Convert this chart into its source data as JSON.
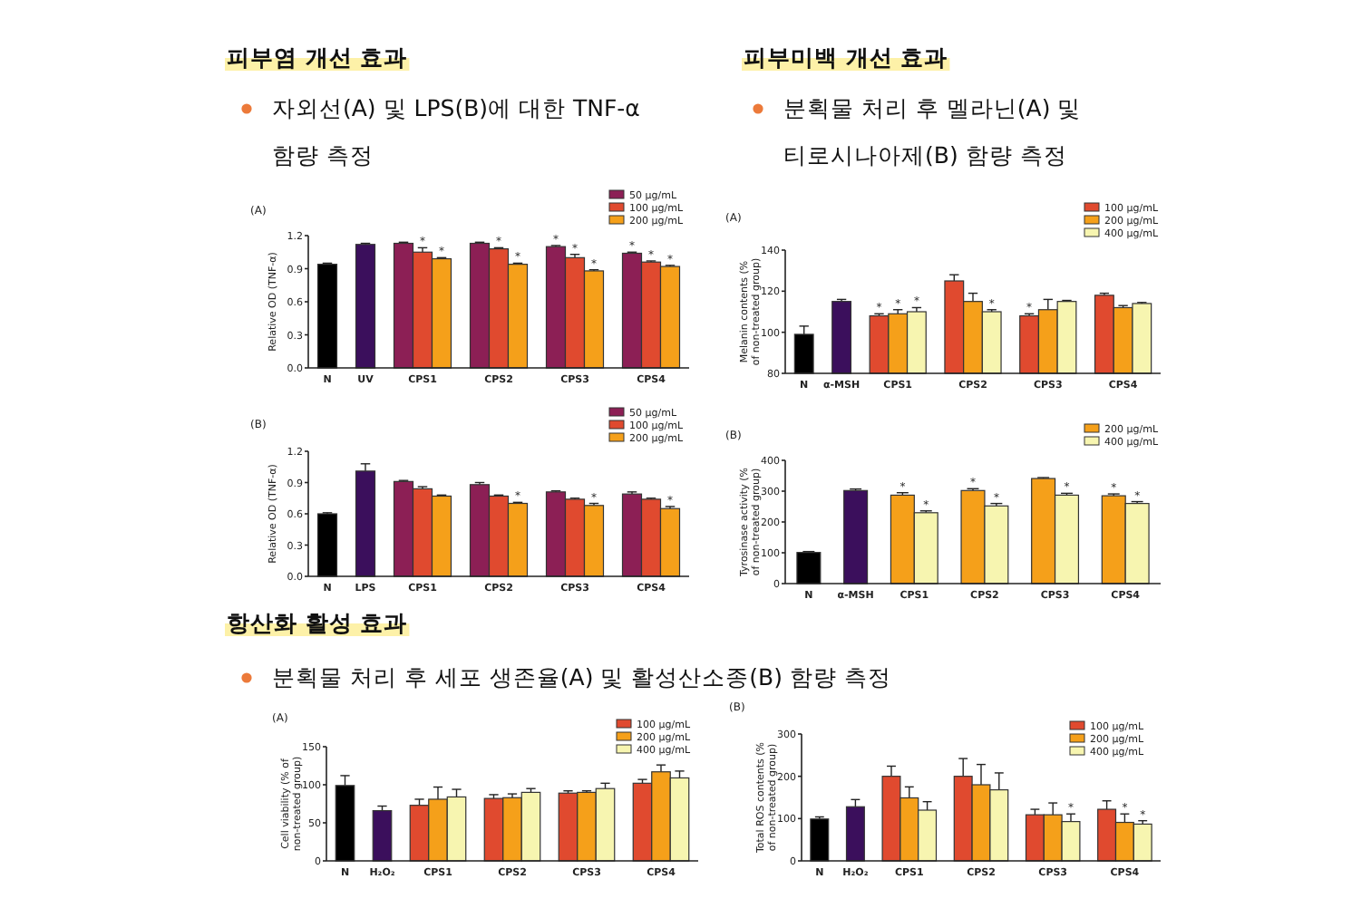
{
  "chart_data": [
    {
      "type": "bar",
      "title": "피부염 개선 효과",
      "subtitle": "자외선(A) 및 LPS(B)에 대한 TNF-α 함량 측정",
      "ylabel": "Relative OD (TNF-α)",
      "annotations": [
        "(A)"
      ],
      "categories": [
        "N",
        "UV",
        "CPS1",
        "CPS2",
        "CPS3",
        "CPS4"
      ],
      "ylim": [
        0,
        1.2
      ],
      "yticks": [
        {
          "value": 0,
          "label": "0.0"
        },
        0.3,
        0.6,
        0.9,
        1.2
      ],
      "legend": "top right",
      "series": [
        {
          "color": "#000000",
          "values": [
            0.94,
            null,
            null,
            null,
            null,
            null
          ],
          "errors": [
            0.01,
            null,
            null,
            null,
            null,
            null
          ]
        },
        {
          "color": "#3b0f5c",
          "values": [
            null,
            1.12,
            null,
            null,
            null,
            null
          ],
          "errors": [
            null,
            0.01,
            null,
            null,
            null,
            null
          ]
        },
        {
          "name": "50 μg/mL",
          "color": "#8c1f55",
          "values": [
            null,
            null,
            1.13,
            1.13,
            1.1,
            1.04
          ],
          "errors": [
            null,
            null,
            0.01,
            0.01,
            0.01,
            0.01
          ],
          "value_labels": [
            null,
            null,
            null,
            null,
            "*",
            "*"
          ]
        },
        {
          "name": "100 μg/mL",
          "color": "#e04a2f",
          "values": [
            null,
            null,
            1.05,
            1.08,
            1.0,
            0.96
          ],
          "errors": [
            null,
            null,
            0.04,
            0.01,
            0.03,
            0.01
          ],
          "value_labels": [
            null,
            null,
            "*",
            "*",
            "*",
            "*"
          ]
        },
        {
          "name": "200 μg/mL",
          "color": "#f5a01a",
          "values": [
            null,
            null,
            0.99,
            0.94,
            0.88,
            0.92
          ],
          "errors": [
            null,
            null,
            0.01,
            0.01,
            0.01,
            0.01
          ],
          "value_labels": [
            null,
            null,
            "*",
            "*",
            "*",
            "*"
          ]
        }
      ]
    },
    {
      "type": "bar",
      "ylabel": "Relative OD (TNF-α)",
      "annotations": [
        "(B)"
      ],
      "categories": [
        "N",
        "LPS",
        "CPS1",
        "CPS2",
        "CPS3",
        "CPS4"
      ],
      "ylim": [
        0,
        1.2
      ],
      "yticks": [
        {
          "value": 0,
          "label": "0.0"
        },
        0.3,
        0.6,
        0.9,
        1.2
      ],
      "legend": "top right",
      "series": [
        {
          "color": "#000000",
          "values": [
            0.6,
            null,
            null,
            null,
            null,
            null
          ],
          "errors": [
            0.01,
            null,
            null,
            null,
            null,
            null
          ]
        },
        {
          "color": "#3b0f5c",
          "values": [
            null,
            1.01,
            null,
            null,
            null,
            null
          ],
          "errors": [
            null,
            0.07,
            null,
            null,
            null,
            null
          ]
        },
        {
          "name": "50 μg/mL",
          "color": "#8c1f55",
          "values": [
            null,
            null,
            0.91,
            0.88,
            0.81,
            0.79
          ],
          "errors": [
            null,
            null,
            0.01,
            0.02,
            0.01,
            0.02
          ]
        },
        {
          "name": "100 μg/mL",
          "color": "#e04a2f",
          "values": [
            null,
            null,
            0.84,
            0.77,
            0.74,
            0.74
          ],
          "errors": [
            null,
            null,
            0.02,
            0.01,
            0.01,
            0.01
          ]
        },
        {
          "name": "200 μg/mL",
          "color": "#f5a01a",
          "values": [
            null,
            null,
            0.77,
            0.7,
            0.68,
            0.65
          ],
          "errors": [
            null,
            null,
            0.01,
            0.01,
            0.02,
            0.02
          ],
          "value_labels": [
            null,
            null,
            null,
            "*",
            "*",
            "*"
          ]
        }
      ]
    },
    {
      "type": "bar",
      "title": "피부미백 개선 효과",
      "subtitle": "분획물 처리 후 멜라닌(A) 및 티로시나아제(B) 함량 측정",
      "ylabel": "Melanin contents (% of non-treated group)",
      "annotations": [
        "(A)"
      ],
      "categories": [
        "N",
        "α-MSH",
        "CPS1",
        "CPS2",
        "CPS3",
        "CPS4"
      ],
      "ylim": [
        80,
        140
      ],
      "yticks": [
        80,
        100,
        120,
        140
      ],
      "legend": "top right",
      "series": [
        {
          "color": "#000000",
          "values": [
            99,
            null,
            null,
            null,
            null,
            null
          ],
          "errors": [
            4,
            null,
            null,
            null,
            null,
            null
          ]
        },
        {
          "color": "#3b0f5c",
          "values": [
            null,
            115,
            null,
            null,
            null,
            null
          ],
          "errors": [
            null,
            1,
            null,
            null,
            null,
            null
          ]
        },
        {
          "name": "100 μg/mL",
          "color": "#e04a2f",
          "values": [
            null,
            null,
            108,
            125,
            108,
            118
          ],
          "errors": [
            null,
            null,
            1,
            3,
            1,
            1
          ],
          "value_labels": [
            null,
            null,
            "*",
            null,
            "*",
            null
          ]
        },
        {
          "name": "200 μg/mL",
          "color": "#f5a01a",
          "values": [
            null,
            null,
            109,
            115,
            111,
            112
          ],
          "errors": [
            null,
            null,
            2,
            4,
            5,
            1
          ],
          "value_labels": [
            null,
            null,
            "*",
            null,
            null,
            null
          ]
        },
        {
          "name": "400 μg/mL",
          "color": "#f7f5b0",
          "values": [
            null,
            null,
            110,
            110,
            115,
            114
          ],
          "errors": [
            null,
            null,
            2,
            1,
            0.5,
            0.5
          ],
          "value_labels": [
            null,
            null,
            "*",
            "*",
            null,
            null
          ]
        }
      ]
    },
    {
      "type": "bar",
      "ylabel": "Tyrosinase activity (% of non-treated group)",
      "annotations": [
        "(B)"
      ],
      "categories": [
        "N",
        "α-MSH",
        "CPS1",
        "CPS2",
        "CPS3",
        "CPS4"
      ],
      "ylim": [
        0,
        400
      ],
      "yticks": [
        0,
        100,
        200,
        300,
        400
      ],
      "legend": "top right",
      "series": [
        {
          "color": "#000000",
          "values": [
            101,
            null,
            null,
            null,
            null,
            null
          ],
          "errors": [
            3,
            null,
            null,
            null,
            null,
            null
          ]
        },
        {
          "color": "#3b0f5c",
          "values": [
            null,
            302,
            null,
            null,
            null,
            null
          ],
          "errors": [
            null,
            5,
            null,
            null,
            null,
            null
          ]
        },
        {
          "name": "200 μg/mL",
          "color": "#f5a01a",
          "values": [
            null,
            null,
            287,
            302,
            341,
            285
          ],
          "errors": [
            null,
            null,
            8,
            6,
            3,
            6
          ],
          "value_labels": [
            null,
            null,
            "*",
            "*",
            null,
            "*"
          ]
        },
        {
          "name": "400 μg/mL",
          "color": "#f7f5b0",
          "values": [
            null,
            null,
            230,
            252,
            287,
            260
          ],
          "errors": [
            null,
            null,
            6,
            8,
            6,
            6
          ],
          "value_labels": [
            null,
            null,
            "*",
            "*",
            "*",
            "*"
          ]
        }
      ]
    },
    {
      "type": "bar",
      "title": "항산화 활성 효과",
      "subtitle": "분획물 처리 후 세포 생존율(A) 및 활성산소종(B) 함량 측정",
      "ylabel": "Cell viability (% of non-treated group)",
      "annotations": [
        "(A)"
      ],
      "categories": [
        "N",
        "H₂O₂",
        "CPS1",
        "CPS2",
        "CPS3",
        "CPS4"
      ],
      "ylim": [
        0,
        150
      ],
      "yticks": [
        0,
        50,
        100,
        150
      ],
      "legend": "top right",
      "series": [
        {
          "color": "#000000",
          "values": [
            99,
            null,
            null,
            null,
            null,
            null
          ],
          "errors": [
            13,
            null,
            null,
            null,
            null,
            null
          ]
        },
        {
          "color": "#3b0f5c",
          "values": [
            null,
            66,
            null,
            null,
            null,
            null
          ],
          "errors": [
            null,
            6,
            null,
            null,
            null,
            null
          ]
        },
        {
          "name": "100 μg/mL",
          "color": "#e04a2f",
          "values": [
            null,
            null,
            73,
            82,
            89,
            102
          ],
          "errors": [
            null,
            null,
            8,
            5,
            3,
            5
          ]
        },
        {
          "name": "200 μg/mL",
          "color": "#f5a01a",
          "values": [
            null,
            null,
            81,
            83,
            90,
            117
          ],
          "errors": [
            null,
            null,
            16,
            5,
            2,
            9
          ]
        },
        {
          "name": "400 μg/mL",
          "color": "#f7f5b0",
          "values": [
            null,
            null,
            84,
            90,
            95,
            109
          ],
          "errors": [
            null,
            null,
            10,
            5,
            7,
            9
          ]
        }
      ]
    },
    {
      "type": "bar",
      "ylabel": "Total ROS contents (% of non-treated group)",
      "annotations": [
        "(B)"
      ],
      "categories": [
        "N",
        "H₂O₂",
        "CPS1",
        "CPS2",
        "CPS3",
        "CPS4"
      ],
      "ylim": [
        0,
        300
      ],
      "yticks": [
        0,
        100,
        200,
        300
      ],
      "legend": "top right",
      "series": [
        {
          "color": "#000000",
          "values": [
            99,
            null,
            null,
            null,
            null,
            null
          ],
          "errors": [
            5,
            null,
            null,
            null,
            null,
            null
          ]
        },
        {
          "color": "#3b0f5c",
          "values": [
            null,
            128,
            null,
            null,
            null,
            null
          ],
          "errors": [
            null,
            17,
            null,
            null,
            null,
            null
          ]
        },
        {
          "name": "100 μg/mL",
          "color": "#e04a2f",
          "values": [
            null,
            null,
            200,
            200,
            109,
            122
          ],
          "errors": [
            null,
            null,
            24,
            42,
            13,
            20
          ]
        },
        {
          "name": "200 μg/mL",
          "color": "#f5a01a",
          "values": [
            null,
            null,
            149,
            180,
            109,
            91
          ],
          "errors": [
            null,
            null,
            26,
            48,
            28,
            20
          ],
          "value_labels": [
            null,
            null,
            null,
            null,
            null,
            "*"
          ]
        },
        {
          "name": "400 μg/mL",
          "color": "#f7f5b0",
          "values": [
            null,
            null,
            120,
            168,
            93,
            87
          ],
          "errors": [
            null,
            null,
            20,
            40,
            18,
            8
          ],
          "value_labels": [
            null,
            null,
            null,
            null,
            "*",
            "*"
          ]
        }
      ]
    }
  ]
}
